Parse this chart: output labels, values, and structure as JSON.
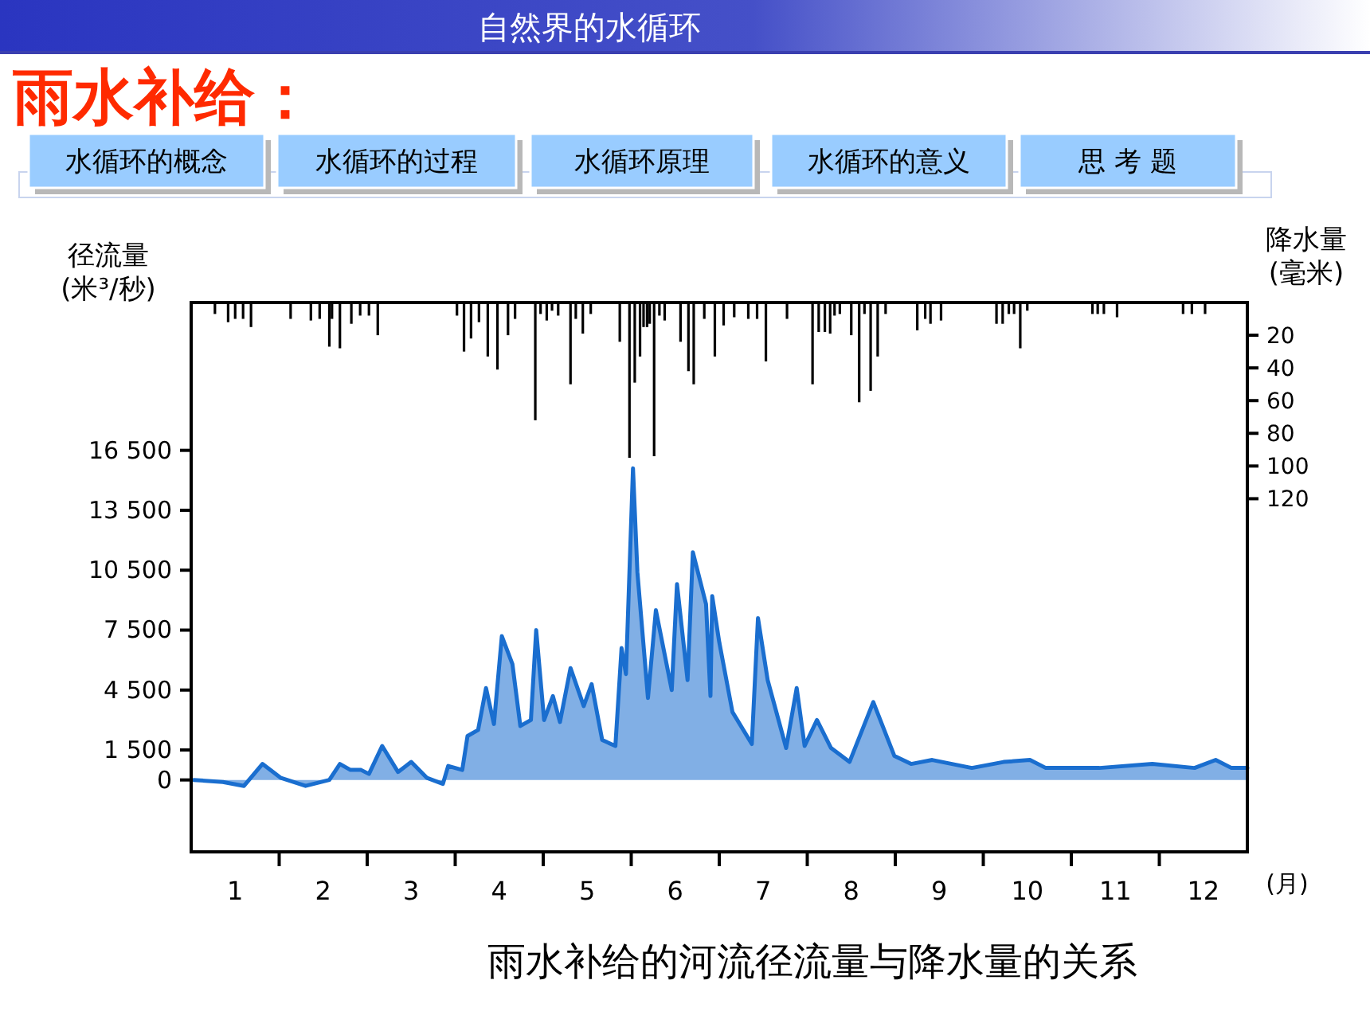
{
  "chart_data": {
    "type": "area",
    "title": "自然界的水循环",
    "subtitle": "雨水补给：",
    "annotations": [
      "水循环的概念",
      "水循环的过程",
      "水循环原理",
      "水循环的意义",
      "思 考 题",
      "雨水补给的河流径流量与降水量的关系"
    ],
    "xlabel": "(月)",
    "ylabel": "径流量\n(米³/秒)",
    "y2label": "降水量\n(毫米)",
    "xlim": [
      0.5,
      12.5
    ],
    "xticks": [
      {
        "value": 1.5,
        "label": null
      },
      {
        "value": 2.5,
        "label": null
      },
      {
        "value": 3.5,
        "label": null
      },
      {
        "value": 4.5,
        "label": null
      },
      {
        "value": 5.5,
        "label": null
      },
      {
        "value": 6.5,
        "label": null
      },
      {
        "value": 7.5,
        "label": null
      },
      {
        "value": 8.5,
        "label": null
      },
      {
        "value": 9.5,
        "label": null
      },
      {
        "value": 10.5,
        "label": null
      },
      {
        "value": 11.5,
        "label": null
      },
      1,
      2,
      3,
      4,
      5,
      6,
      7,
      8,
      9,
      10,
      11,
      12
    ],
    "ylim": [
      -3600,
      23900
    ],
    "yticks": [
      {
        "value": 0,
        "label": "0"
      },
      {
        "value": 1500,
        "label": "1 500"
      },
      {
        "value": 4500,
        "label": "4 500"
      },
      {
        "value": 7500,
        "label": "7 500"
      },
      {
        "value": 10500,
        "label": "10 500"
      },
      {
        "value": 13500,
        "label": "13 500"
      },
      {
        "value": 16500,
        "label": "16 500"
      }
    ],
    "y2lim": [
      336,
      0
    ],
    "y2ticks": [
      20,
      40,
      60,
      80,
      100,
      120
    ],
    "series": [
      {
        "color": "#1a6ecf",
        "x": [
          0.53,
          0.86,
          1.1,
          1.31,
          1.52,
          1.8,
          2.07,
          2.19,
          2.31,
          2.43,
          2.52,
          2.67,
          2.85,
          3.0,
          3.18,
          3.36,
          3.42,
          3.58,
          3.64,
          3.76,
          3.85,
          3.94,
          4.03,
          4.15,
          4.24,
          4.36,
          4.42,
          4.51,
          4.61,
          4.69,
          4.81,
          4.96,
          5.05,
          5.17,
          5.32,
          5.39,
          5.44,
          5.52,
          5.57,
          5.69,
          5.78,
          5.96,
          6.02,
          6.14,
          6.2,
          6.35,
          6.4,
          6.42,
          6.5,
          6.65,
          6.87,
          6.94,
          7.05,
          7.26,
          7.38,
          7.47,
          7.61,
          7.77,
          7.98,
          8.25,
          8.49,
          8.68,
          8.92,
          9.37,
          9.73,
          10.03,
          10.21,
          10.82,
          11.42,
          11.9,
          12.14,
          12.32,
          12.5
        ],
        "values": [
          0,
          -100,
          -300,
          800,
          100,
          -300,
          0,
          800,
          500,
          500,
          300,
          1700,
          400,
          900,
          100,
          -200,
          700,
          500,
          2200,
          2500,
          4600,
          2800,
          7200,
          5800,
          2700,
          3000,
          7500,
          3000,
          4200,
          2900,
          5600,
          3700,
          4800,
          2000,
          1700,
          6600,
          5300,
          15600,
          10400,
          4100,
          8500,
          4500,
          9800,
          5000,
          11400,
          8800,
          4200,
          9200,
          6900,
          3400,
          1800,
          8100,
          5000,
          1600,
          4600,
          1700,
          3000,
          1600,
          900,
          3900,
          1200,
          800,
          1000,
          600,
          900,
          1000,
          600,
          600,
          800,
          600,
          1000,
          600,
          600
        ]
      },
      {
        "type": "bar",
        "axis": "y2",
        "color": "#000000",
        "x": [
          0.77,
          0.92,
          1.0,
          1.09,
          1.18,
          1.63,
          1.86,
          1.96,
          2.07,
          2.1,
          2.19,
          2.32,
          2.42,
          2.52,
          2.62,
          3.52,
          3.6,
          3.68,
          3.77,
          3.87,
          3.98,
          4.1,
          4.18,
          4.41,
          4.47,
          4.54,
          4.6,
          4.67,
          4.81,
          4.87,
          4.95,
          5.04,
          5.37,
          5.48,
          5.54,
          5.6,
          5.64,
          5.68,
          5.71,
          5.76,
          5.82,
          5.88,
          6.06,
          6.15,
          6.21,
          6.33,
          6.45,
          6.55,
          6.67,
          6.83,
          6.93,
          7.03,
          7.27,
          7.56,
          7.63,
          7.7,
          7.76,
          7.81,
          7.87,
          8.0,
          8.09,
          8.15,
          8.22,
          8.3,
          8.39,
          8.75,
          8.84,
          8.9,
          9.02,
          9.65,
          9.72,
          9.79,
          9.85,
          9.92,
          10.0,
          10.74,
          10.8,
          10.87,
          11.02,
          11.77,
          11.87,
          12.02
        ],
        "values": [
          7,
          12,
          10,
          10,
          15,
          10,
          11,
          10,
          27,
          10,
          28,
          13,
          8,
          8,
          20,
          8,
          30,
          22,
          12,
          33,
          41,
          20,
          10,
          72,
          7,
          11,
          5,
          8,
          50,
          10,
          19,
          7,
          24,
          95,
          49,
          33,
          15,
          15,
          13,
          94,
          8,
          11,
          24,
          42,
          50,
          10,
          33,
          14,
          9,
          10,
          10,
          36,
          10,
          50,
          18,
          18,
          19,
          8,
          7,
          20,
          61,
          7,
          54,
          33,
          7,
          17,
          10,
          13,
          11,
          13,
          13,
          7,
          7,
          28,
          5,
          7,
          7,
          7,
          9,
          7,
          7,
          7
        ]
      }
    ]
  }
}
